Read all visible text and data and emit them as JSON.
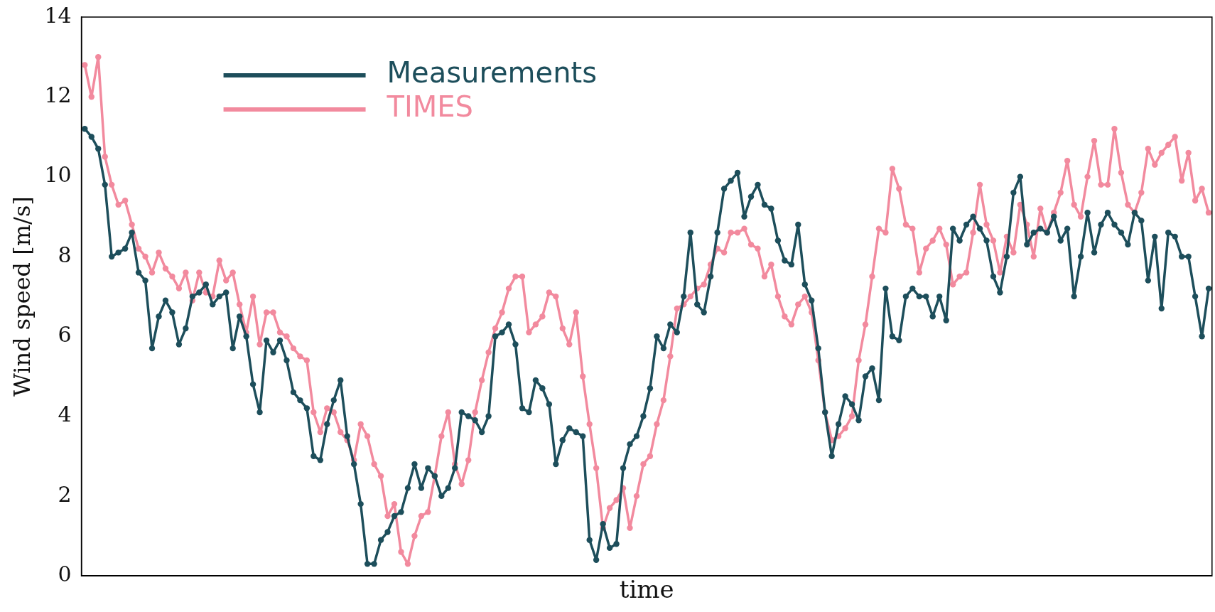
{
  "chart_data": {
    "type": "line",
    "xlabel": "time",
    "ylabel": "Wind speed [m/s]",
    "categories": [
      null,
      null,
      null,
      null,
      null,
      null,
      null,
      null,
      null,
      null,
      null,
      null,
      null,
      null,
      null,
      null,
      null,
      null,
      null,
      null,
      null,
      null,
      null,
      null,
      null,
      null,
      null,
      null,
      null,
      null,
      null,
      null,
      null,
      null,
      null,
      null,
      null,
      null,
      null,
      null,
      null,
      null,
      null,
      null,
      null,
      null,
      null,
      null,
      null,
      null,
      null,
      null,
      null,
      null,
      null,
      null,
      null,
      null,
      null,
      null,
      null,
      null,
      null,
      null,
      null,
      null,
      null,
      null,
      null,
      null,
      null,
      null,
      null,
      null,
      null,
      null,
      null,
      null,
      null,
      null,
      null,
      null,
      null,
      null,
      null,
      null,
      null,
      null,
      null,
      null,
      null,
      null,
      null,
      null,
      null,
      null,
      null,
      null,
      null,
      null,
      null,
      null,
      null,
      null,
      null,
      null,
      null,
      null,
      null,
      null,
      null,
      null,
      null,
      null,
      null,
      null,
      null,
      null,
      null,
      null,
      null,
      null,
      null,
      null,
      null,
      null,
      null,
      null,
      null,
      null,
      null,
      null,
      null,
      null,
      null,
      null,
      null,
      null,
      null,
      null,
      null,
      null,
      null,
      null,
      null,
      null,
      null,
      null,
      null,
      null,
      null,
      null,
      null,
      null,
      null,
      null,
      null,
      null,
      null,
      null,
      null,
      null,
      null,
      null,
      null,
      null,
      null,
      null
    ],
    "series": [
      {
        "name": "Measurements",
        "color": "#1d4e5b",
        "values": [
          11.2,
          11.0,
          10.7,
          9.8,
          8.0,
          8.1,
          8.2,
          8.6,
          7.6,
          7.4,
          5.7,
          6.5,
          6.9,
          6.6,
          5.8,
          6.2,
          7.0,
          7.1,
          7.3,
          6.8,
          7.0,
          7.1,
          5.7,
          6.5,
          6.0,
          4.8,
          4.1,
          5.9,
          5.6,
          5.9,
          5.4,
          4.6,
          4.4,
          4.2,
          3.0,
          2.9,
          3.8,
          4.4,
          4.9,
          3.5,
          2.8,
          1.8,
          0.3,
          0.3,
          0.9,
          1.1,
          1.5,
          1.6,
          2.2,
          2.8,
          2.2,
          2.7,
          2.5,
          2.0,
          2.2,
          2.7,
          4.1,
          4.0,
          3.9,
          3.6,
          4.0,
          6.0,
          6.1,
          6.3,
          5.8,
          4.2,
          4.1,
          4.9,
          4.7,
          4.3,
          2.8,
          3.4,
          3.7,
          3.6,
          3.5,
          0.9,
          0.4,
          1.3,
          0.7,
          0.8,
          2.7,
          3.3,
          3.5,
          4.0,
          4.7,
          6.0,
          5.7,
          6.3,
          6.1,
          7.0,
          8.6,
          6.8,
          6.6,
          7.5,
          8.6,
          9.7,
          9.9,
          10.1,
          9.0,
          9.5,
          9.8,
          9.3,
          9.2,
          8.4,
          7.9,
          7.8,
          8.8,
          7.3,
          6.9,
          5.7,
          4.1,
          3.0,
          3.8,
          4.5,
          4.3,
          3.9,
          5.0,
          5.2,
          4.4,
          7.2,
          6.0,
          5.9,
          7.0,
          7.2,
          7.0,
          7.0,
          6.5,
          7.0,
          6.4,
          8.7,
          8.4,
          8.8,
          9.0,
          8.7,
          8.4,
          7.5,
          7.1,
          8.0,
          9.6,
          10.0,
          8.3,
          8.6,
          8.7,
          8.6,
          9.0,
          8.4,
          8.7,
          7.0,
          8.0,
          9.1,
          8.1,
          8.8,
          9.1,
          8.8,
          8.6,
          8.3,
          9.1,
          8.9,
          7.4,
          8.5,
          6.7,
          8.6,
          8.5,
          8.0,
          8.0,
          7.0,
          6.0,
          7.2
        ]
      },
      {
        "name": "TIMES",
        "color": "#f28a9e",
        "values": [
          12.8,
          12.0,
          13.0,
          10.5,
          9.8,
          9.3,
          9.4,
          8.8,
          8.2,
          8.0,
          7.6,
          8.1,
          7.7,
          7.5,
          7.2,
          7.6,
          6.9,
          7.6,
          7.1,
          7.0,
          7.9,
          7.4,
          7.6,
          6.8,
          6.1,
          7.0,
          5.8,
          6.6,
          6.6,
          6.1,
          6.0,
          5.7,
          5.5,
          5.4,
          4.1,
          3.6,
          4.2,
          4.1,
          3.6,
          3.4,
          2.9,
          3.8,
          3.5,
          2.8,
          2.5,
          1.5,
          1.8,
          0.6,
          0.3,
          1.0,
          1.5,
          1.6,
          2.5,
          3.5,
          4.1,
          2.8,
          2.3,
          2.9,
          4.1,
          4.9,
          5.6,
          6.2,
          6.6,
          7.2,
          7.5,
          7.5,
          6.1,
          6.3,
          6.5,
          7.1,
          7.0,
          6.2,
          5.8,
          6.6,
          5.0,
          3.8,
          2.7,
          1.2,
          1.7,
          1.9,
          2.2,
          1.2,
          2.0,
          2.8,
          3.0,
          3.8,
          4.4,
          5.5,
          6.7,
          6.8,
          7.0,
          7.2,
          7.3,
          7.8,
          8.2,
          8.1,
          8.6,
          8.6,
          8.7,
          8.3,
          8.2,
          7.5,
          7.8,
          7.0,
          6.5,
          6.3,
          6.8,
          7.0,
          6.6,
          5.4,
          4.1,
          3.4,
          3.5,
          3.7,
          4.0,
          5.4,
          6.3,
          7.5,
          8.7,
          8.6,
          10.2,
          9.7,
          8.8,
          8.7,
          7.6,
          8.2,
          8.4,
          8.7,
          8.3,
          7.3,
          7.5,
          7.6,
          8.6,
          9.8,
          8.8,
          8.4,
          7.6,
          8.5,
          8.1,
          9.3,
          8.8,
          8.0,
          9.2,
          8.6,
          9.1,
          9.6,
          10.4,
          9.3,
          9.0,
          10.0,
          10.9,
          9.8,
          9.8,
          11.2,
          10.1,
          9.3,
          9.1,
          9.6,
          10.7,
          10.3,
          10.6,
          10.8,
          11.0,
          9.9,
          10.6,
          9.4,
          9.7,
          9.1
        ]
      }
    ],
    "ylim": [
      0,
      14
    ],
    "yticks": [
      0,
      2,
      4,
      6,
      8,
      10,
      12,
      14
    ],
    "grid": false,
    "legend": "top left",
    "marker": "circle",
    "line_style": "solid",
    "tick_labels": "y"
  }
}
